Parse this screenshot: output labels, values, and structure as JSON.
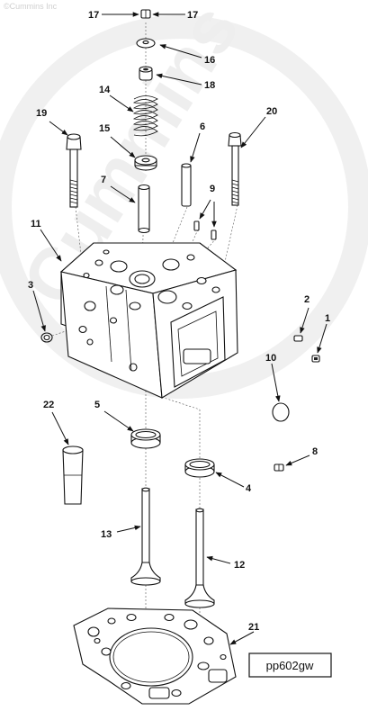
{
  "watermark": {
    "brand_small": "©Cummins Inc",
    "brand_large": "Cummins"
  },
  "figure_id": "pp602gw",
  "callouts": {
    "c1": "1",
    "c2": "2",
    "c3": "3",
    "c4": "4",
    "c5": "5",
    "c6": "6",
    "c7": "7",
    "c8": "8",
    "c9": "9",
    "c10": "10",
    "c11": "11",
    "c12": "12",
    "c13": "13",
    "c14": "14",
    "c15": "15",
    "c16": "16",
    "c17a": "17",
    "c17b": "17",
    "c18": "18",
    "c19": "19",
    "c20": "20",
    "c21": "21",
    "c22": "22"
  }
}
